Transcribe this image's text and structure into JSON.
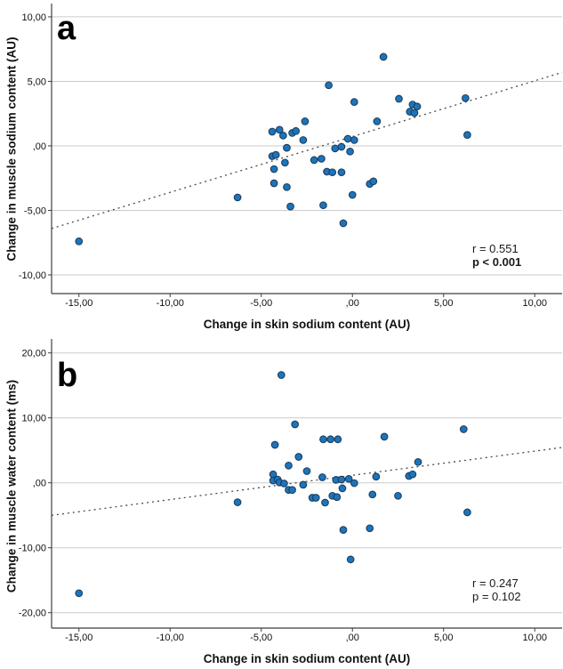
{
  "figure": {
    "background": "#ffffff",
    "point_fill": "#1C75BC",
    "point_stroke": "#1E3D5C",
    "grid_color": "#CBCBCB",
    "axis_color": "#3F3F3F",
    "trend_color": "#4A4A4A",
    "text_color": "#111111"
  },
  "chart_data": [
    {
      "type": "scatter",
      "panel_label": "a",
      "xlabel": "Change in skin sodium content (AU)",
      "ylabel": "Change in muscle sodium content (AU)",
      "xlim": [
        -16.5,
        11.5
      ],
      "ylim": [
        -11.45,
        11.03
      ],
      "xticks": [
        -15,
        -10,
        -5,
        0,
        5,
        10
      ],
      "xtick_labels": [
        "-15,00",
        "-10,00",
        "-5,00",
        ",00",
        "5,00",
        "10,00"
      ],
      "yticks": [
        10,
        5,
        0,
        -5,
        -10
      ],
      "ytick_labels": [
        "10,00",
        "5,00",
        ",00",
        "-5,00",
        "-10,00"
      ],
      "grid": true,
      "legend": "none",
      "annotation": {
        "r_label": "r = 0.551",
        "p_label": "p < 0.001",
        "p_bold": true
      },
      "trend": {
        "x1": -16.5,
        "y1": -6.41,
        "x2": 11.5,
        "y2": 5.69
      },
      "points": [
        [
          -15.0,
          -7.4
        ],
        [
          -6.3,
          -4.0
        ],
        [
          -4.4,
          1.1
        ],
        [
          -4.0,
          1.25
        ],
        [
          -3.8,
          0.8
        ],
        [
          -3.3,
          1.0
        ],
        [
          -3.1,
          1.15
        ],
        [
          -2.7,
          0.45
        ],
        [
          -2.6,
          1.9
        ],
        [
          -3.6,
          -0.15
        ],
        [
          -4.4,
          -0.8
        ],
        [
          -4.2,
          -0.7
        ],
        [
          -3.7,
          -1.3
        ],
        [
          -4.3,
          -1.8
        ],
        [
          -4.3,
          -2.9
        ],
        [
          -3.6,
          -3.2
        ],
        [
          -3.4,
          -4.7
        ],
        [
          -2.1,
          -1.1
        ],
        [
          -1.7,
          -1.0
        ],
        [
          -1.6,
          -4.6
        ],
        [
          -0.5,
          -6.0
        ],
        [
          0.0,
          -3.8
        ],
        [
          -1.4,
          -2.0
        ],
        [
          -1.1,
          -2.05
        ],
        [
          -0.6,
          -2.05
        ],
        [
          -0.95,
          -0.2
        ],
        [
          -0.6,
          -0.07
        ],
        [
          -0.13,
          -0.44
        ],
        [
          -0.25,
          0.55
        ],
        [
          0.1,
          0.45
        ],
        [
          -1.3,
          4.7
        ],
        [
          0.1,
          3.4
        ],
        [
          1.7,
          6.9
        ],
        [
          1.35,
          1.9
        ],
        [
          2.55,
          3.65
        ],
        [
          3.3,
          3.2
        ],
        [
          3.55,
          3.05
        ],
        [
          3.15,
          2.65
        ],
        [
          3.4,
          2.55
        ],
        [
          6.2,
          3.7
        ],
        [
          6.3,
          0.85
        ],
        [
          0.95,
          -2.95
        ],
        [
          1.15,
          -2.75
        ]
      ]
    },
    {
      "type": "scatter",
      "panel_label": "b",
      "xlabel": "Change in skin sodium content (AU)",
      "ylabel": "Change in muscle water content (ms)",
      "xlim": [
        -16.5,
        11.5
      ],
      "ylim": [
        -22.37,
        22.15
      ],
      "xticks": [
        -15,
        -10,
        -5,
        0,
        5,
        10
      ],
      "xtick_labels": [
        "-15,00",
        "-10,00",
        "-5,00",
        ",00",
        "5,00",
        "10,00"
      ],
      "yticks": [
        20,
        10,
        0,
        -10,
        -20
      ],
      "ytick_labels": [
        "20,00",
        "10,00",
        ",00",
        "-10,00",
        "-20,00"
      ],
      "grid": true,
      "legend": "none",
      "annotation": {
        "r_label": "r = 0.247",
        "p_label": "p = 0.102",
        "p_bold": false
      },
      "trend": {
        "x1": -16.5,
        "y1": -5.01,
        "x2": 11.5,
        "y2": 5.44
      },
      "points": [
        [
          -15.0,
          -17.0
        ],
        [
          -6.3,
          -3.0
        ],
        [
          -3.9,
          16.6
        ],
        [
          -3.15,
          9.0
        ],
        [
          -4.25,
          5.85
        ],
        [
          -2.95,
          4.0
        ],
        [
          -3.5,
          2.65
        ],
        [
          -2.5,
          1.8
        ],
        [
          -4.35,
          1.3
        ],
        [
          -4.35,
          0.35
        ],
        [
          -4.1,
          0.5
        ],
        [
          -4.0,
          0.05
        ],
        [
          -3.75,
          -0.1
        ],
        [
          -3.5,
          -1.1
        ],
        [
          -3.3,
          -1.1
        ],
        [
          -2.7,
          -0.3
        ],
        [
          -2.2,
          -2.3
        ],
        [
          -2.0,
          -2.3
        ],
        [
          -1.5,
          -3.05
        ],
        [
          -1.6,
          6.7
        ],
        [
          -1.2,
          6.7
        ],
        [
          -0.8,
          6.7
        ],
        [
          1.75,
          7.1
        ],
        [
          6.1,
          8.25
        ],
        [
          -1.65,
          0.85
        ],
        [
          -0.9,
          0.45
        ],
        [
          -0.6,
          0.5
        ],
        [
          -0.2,
          0.6
        ],
        [
          0.1,
          -0.05
        ],
        [
          -0.55,
          -0.85
        ],
        [
          -1.1,
          -2.0
        ],
        [
          -0.85,
          -2.2
        ],
        [
          1.1,
          -1.8
        ],
        [
          1.3,
          0.95
        ],
        [
          2.5,
          -2.0
        ],
        [
          3.1,
          1.05
        ],
        [
          3.3,
          1.3
        ],
        [
          3.6,
          3.2
        ],
        [
          6.3,
          -4.55
        ],
        [
          0.95,
          -7.0
        ],
        [
          -0.5,
          -7.25
        ],
        [
          -0.1,
          -11.8
        ]
      ]
    }
  ]
}
